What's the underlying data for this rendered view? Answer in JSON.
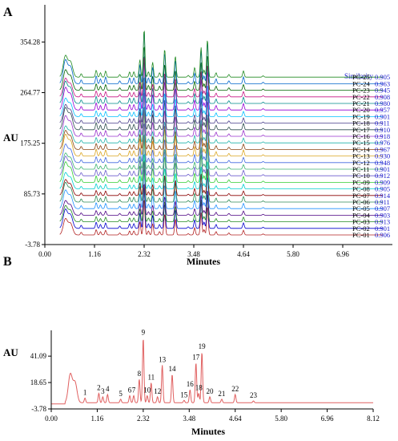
{
  "chart_data": [
    {
      "panel_label": "A",
      "type": "line",
      "ylabel": "AU",
      "xlabel": "Minutes",
      "xlim": [
        0.0,
        8.12
      ],
      "ylim": [
        -3.78,
        420
      ],
      "x_ticks": [
        "0.00",
        "1.16",
        "2.32",
        "3.48",
        "4.64",
        "5.80",
        "6.96"
      ],
      "y_ticks": [
        "-3.78",
        "85.73",
        "175.25",
        "264.77",
        "354.28"
      ],
      "legend_title": "Similarity",
      "series": [
        {
          "name": "PC-01",
          "similarity": "0.906",
          "color": "#b22222"
        },
        {
          "name": "PC-02",
          "similarity": "0.901",
          "color": "#0000cd"
        },
        {
          "name": "PC-03",
          "similarity": "0.913",
          "color": "#228b22"
        },
        {
          "name": "PC-04",
          "similarity": "0.903",
          "color": "#4b0082"
        },
        {
          "name": "PC-05",
          "similarity": "0.907",
          "color": "#1e90ff"
        },
        {
          "name": "PC-06",
          "similarity": "0.911",
          "color": "#2e8b57"
        },
        {
          "name": "PC-07",
          "similarity": "0.914",
          "color": "#8b0000"
        },
        {
          "name": "PC-08",
          "similarity": "0.905",
          "color": "#00ced1"
        },
        {
          "name": "PC-09",
          "similarity": "0.909",
          "color": "#32cd32"
        },
        {
          "name": "PC-10",
          "similarity": "0.912",
          "color": "#6a5acd"
        },
        {
          "name": "PC-11",
          "similarity": "0.901",
          "color": "#3cb371"
        },
        {
          "name": "PC-12",
          "similarity": "0.948",
          "color": "#4169e1"
        },
        {
          "name": "PC-13",
          "similarity": "0.930",
          "color": "#daa520"
        },
        {
          "name": "PC-14",
          "similarity": "0.967",
          "color": "#8b4513"
        },
        {
          "name": "PC-15",
          "similarity": "0.976",
          "color": "#20b2aa"
        },
        {
          "name": "PC-16",
          "similarity": "0.918",
          "color": "#9932cc"
        },
        {
          "name": "PC-17",
          "similarity": "0.910",
          "color": "#2f4f4f"
        },
        {
          "name": "PC-18",
          "similarity": "0.911",
          "color": "#483d8b"
        },
        {
          "name": "PC-19",
          "similarity": "0.901",
          "color": "#00bfff"
        },
        {
          "name": "PC-20",
          "similarity": "0.957",
          "color": "#9400d3"
        },
        {
          "name": "PC-21",
          "similarity": "0.980",
          "color": "#008b8b"
        },
        {
          "name": "PC-22",
          "similarity": "0.908",
          "color": "#c71585"
        },
        {
          "name": "PC-23",
          "similarity": "0.945",
          "color": "#006400"
        },
        {
          "name": "PC-24",
          "similarity": "0.963",
          "color": "#0066cc"
        },
        {
          "name": "PC-25",
          "similarity": "0.905",
          "color": "#228b22"
        }
      ]
    },
    {
      "panel_label": "B",
      "type": "line",
      "ylabel": "AU",
      "xlabel": "Minutes",
      "xlim": [
        0.0,
        8.12
      ],
      "ylim": [
        -3.78,
        63
      ],
      "x_ticks": [
        "0.00",
        "1.16",
        "2.32",
        "3.48",
        "4.64",
        "5.80",
        "6.96",
        "8.12"
      ],
      "y_ticks": [
        "-3.78",
        "18.65",
        "41.09"
      ],
      "color": "#e06060",
      "baseline_au": 1.5,
      "peaks": [
        {
          "label": "",
          "x": 0.48,
          "y": 24
        },
        {
          "label": "",
          "x": 0.6,
          "y": 17
        },
        {
          "label": "1",
          "x": 0.85,
          "y": 4
        },
        {
          "label": "2",
          "x": 1.2,
          "y": 8
        },
        {
          "label": "3",
          "x": 1.3,
          "y": 5
        },
        {
          "label": "4",
          "x": 1.42,
          "y": 7
        },
        {
          "label": "5",
          "x": 1.75,
          "y": 3
        },
        {
          "label": "6",
          "x": 1.98,
          "y": 6
        },
        {
          "label": "7",
          "x": 2.08,
          "y": 6
        },
        {
          "label": "8",
          "x": 2.22,
          "y": 20
        },
        {
          "label": "9",
          "x": 2.32,
          "y": 55
        },
        {
          "label": "10",
          "x": 2.42,
          "y": 6
        },
        {
          "label": "11",
          "x": 2.52,
          "y": 17
        },
        {
          "label": "12",
          "x": 2.68,
          "y": 5
        },
        {
          "label": "13",
          "x": 2.8,
          "y": 32
        },
        {
          "label": "14",
          "x": 3.05,
          "y": 24
        },
        {
          "label": "15",
          "x": 3.35,
          "y": 2
        },
        {
          "label": "16",
          "x": 3.5,
          "y": 11
        },
        {
          "label": "17",
          "x": 3.65,
          "y": 34
        },
        {
          "label": "18",
          "x": 3.72,
          "y": 8
        },
        {
          "label": "19",
          "x": 3.8,
          "y": 43
        },
        {
          "label": "20",
          "x": 4.0,
          "y": 5
        },
        {
          "label": "21",
          "x": 4.3,
          "y": 3
        },
        {
          "label": "22",
          "x": 4.64,
          "y": 7
        },
        {
          "label": "23",
          "x": 5.1,
          "y": 1.5
        }
      ]
    }
  ]
}
